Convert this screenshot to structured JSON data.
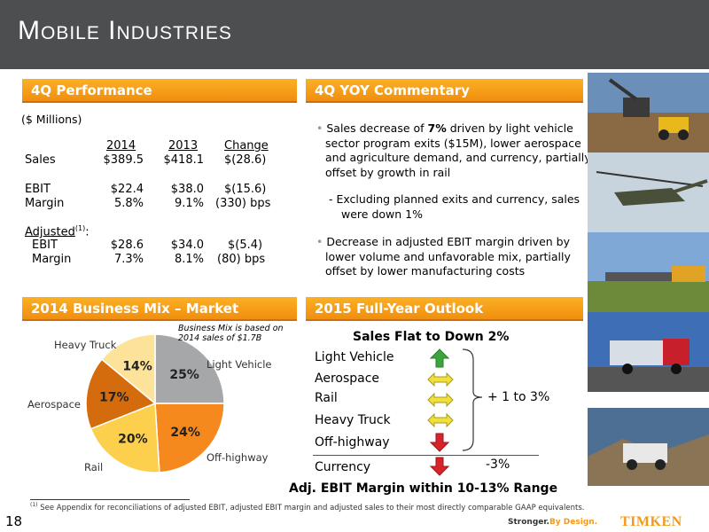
{
  "title": "Mobile Industries",
  "perf": {
    "header": "4Q Performance",
    "units": "($ Millions)",
    "col_headers": [
      "2014",
      "2013",
      "Change"
    ],
    "rows": [
      {
        "label": "Sales",
        "v2014": "$389.5",
        "v2013": "$418.1",
        "change": "$(28.6)"
      },
      {
        "label": "EBIT",
        "v2014": "$22.4",
        "v2013": "$38.0",
        "change": "$(15.6)"
      },
      {
        "label": "Margin",
        "v2014": "5.8%",
        "v2013": "9.1%",
        "change": "(330) bps"
      }
    ],
    "adjusted_label": "Adjusted",
    "adjusted_sup": "(1)",
    "adjusted_colon": ":",
    "adj_rows": [
      {
        "label": "EBIT",
        "v2014": "$28.6",
        "v2013": "$34.0",
        "change": "$(5.4)"
      },
      {
        "label": "Margin",
        "v2014": "7.3%",
        "v2013": "8.1%",
        "change": "(80) bps"
      }
    ]
  },
  "commentary": {
    "header": "4Q YOY Commentary",
    "bullet1_pre": "Sales decrease of ",
    "bullet1_bold": "7%",
    "bullet1_post": " driven by light vehicle sector program exits ($15M), lower aerospace and agriculture demand, and currency, partially offset by growth in rail",
    "sub1": "Excluding planned exits and currency, sales were down 1%",
    "bullet2": "Decrease in adjusted EBIT margin driven by lower volume and unfavorable mix, partially offset by lower manufacturing costs"
  },
  "mix": {
    "header": "2014 Business Mix – Market",
    "note_line1": "Business Mix is based on",
    "note_line2": "2014 sales of $1.7B"
  },
  "chart_data": {
    "type": "pie",
    "slices": [
      {
        "label": "Light Vehicle",
        "value": 25,
        "pct_label": "25%",
        "color": "#a5a7a9"
      },
      {
        "label": "Off-highway",
        "value": 24,
        "pct_label": "24%",
        "color": "#f5891d"
      },
      {
        "label": "Rail",
        "value": 20,
        "pct_label": "20%",
        "color": "#fccf4c"
      },
      {
        "label": "Aerospace",
        "value": 17,
        "pct_label": "17%",
        "color": "#d46b0d"
      },
      {
        "label": "Heavy Truck",
        "value": 14,
        "pct_label": "14%",
        "color": "#fde39a"
      }
    ]
  },
  "outlook": {
    "header": "2015 Full-Year Outlook",
    "headline": "Sales Flat to Down 2%",
    "items": [
      {
        "label": "Light Vehicle",
        "trend": "up"
      },
      {
        "label": "Aerospace",
        "trend": "flat"
      },
      {
        "label": "Rail",
        "trend": "flat"
      },
      {
        "label": "Heavy Truck",
        "trend": "flat"
      },
      {
        "label": "Off-highway",
        "trend": "down"
      }
    ],
    "bracket_label": "+ 1 to 3%",
    "currency_label": "Currency",
    "currency_value": "-3%",
    "margin_line": "Adj. EBIT Margin within 10-13% Range"
  },
  "footnote_sup": "(1)",
  "footnote": "See Appendix for reconciliations of adjusted EBIT, adjusted EBIT margin and adjusted sales to their most directly comparable GAAP equivalents.",
  "page_number": "18",
  "tagline_a": "Stronger.",
  "tagline_b": "By Design.",
  "brand": "TIMKEN",
  "colors": {
    "accent_orange": "#f39a1b",
    "header_gray": "#4d4e50",
    "up_green": "#3aa53a",
    "flat_yellow": "#f2e03a",
    "down_red": "#d8232a"
  }
}
